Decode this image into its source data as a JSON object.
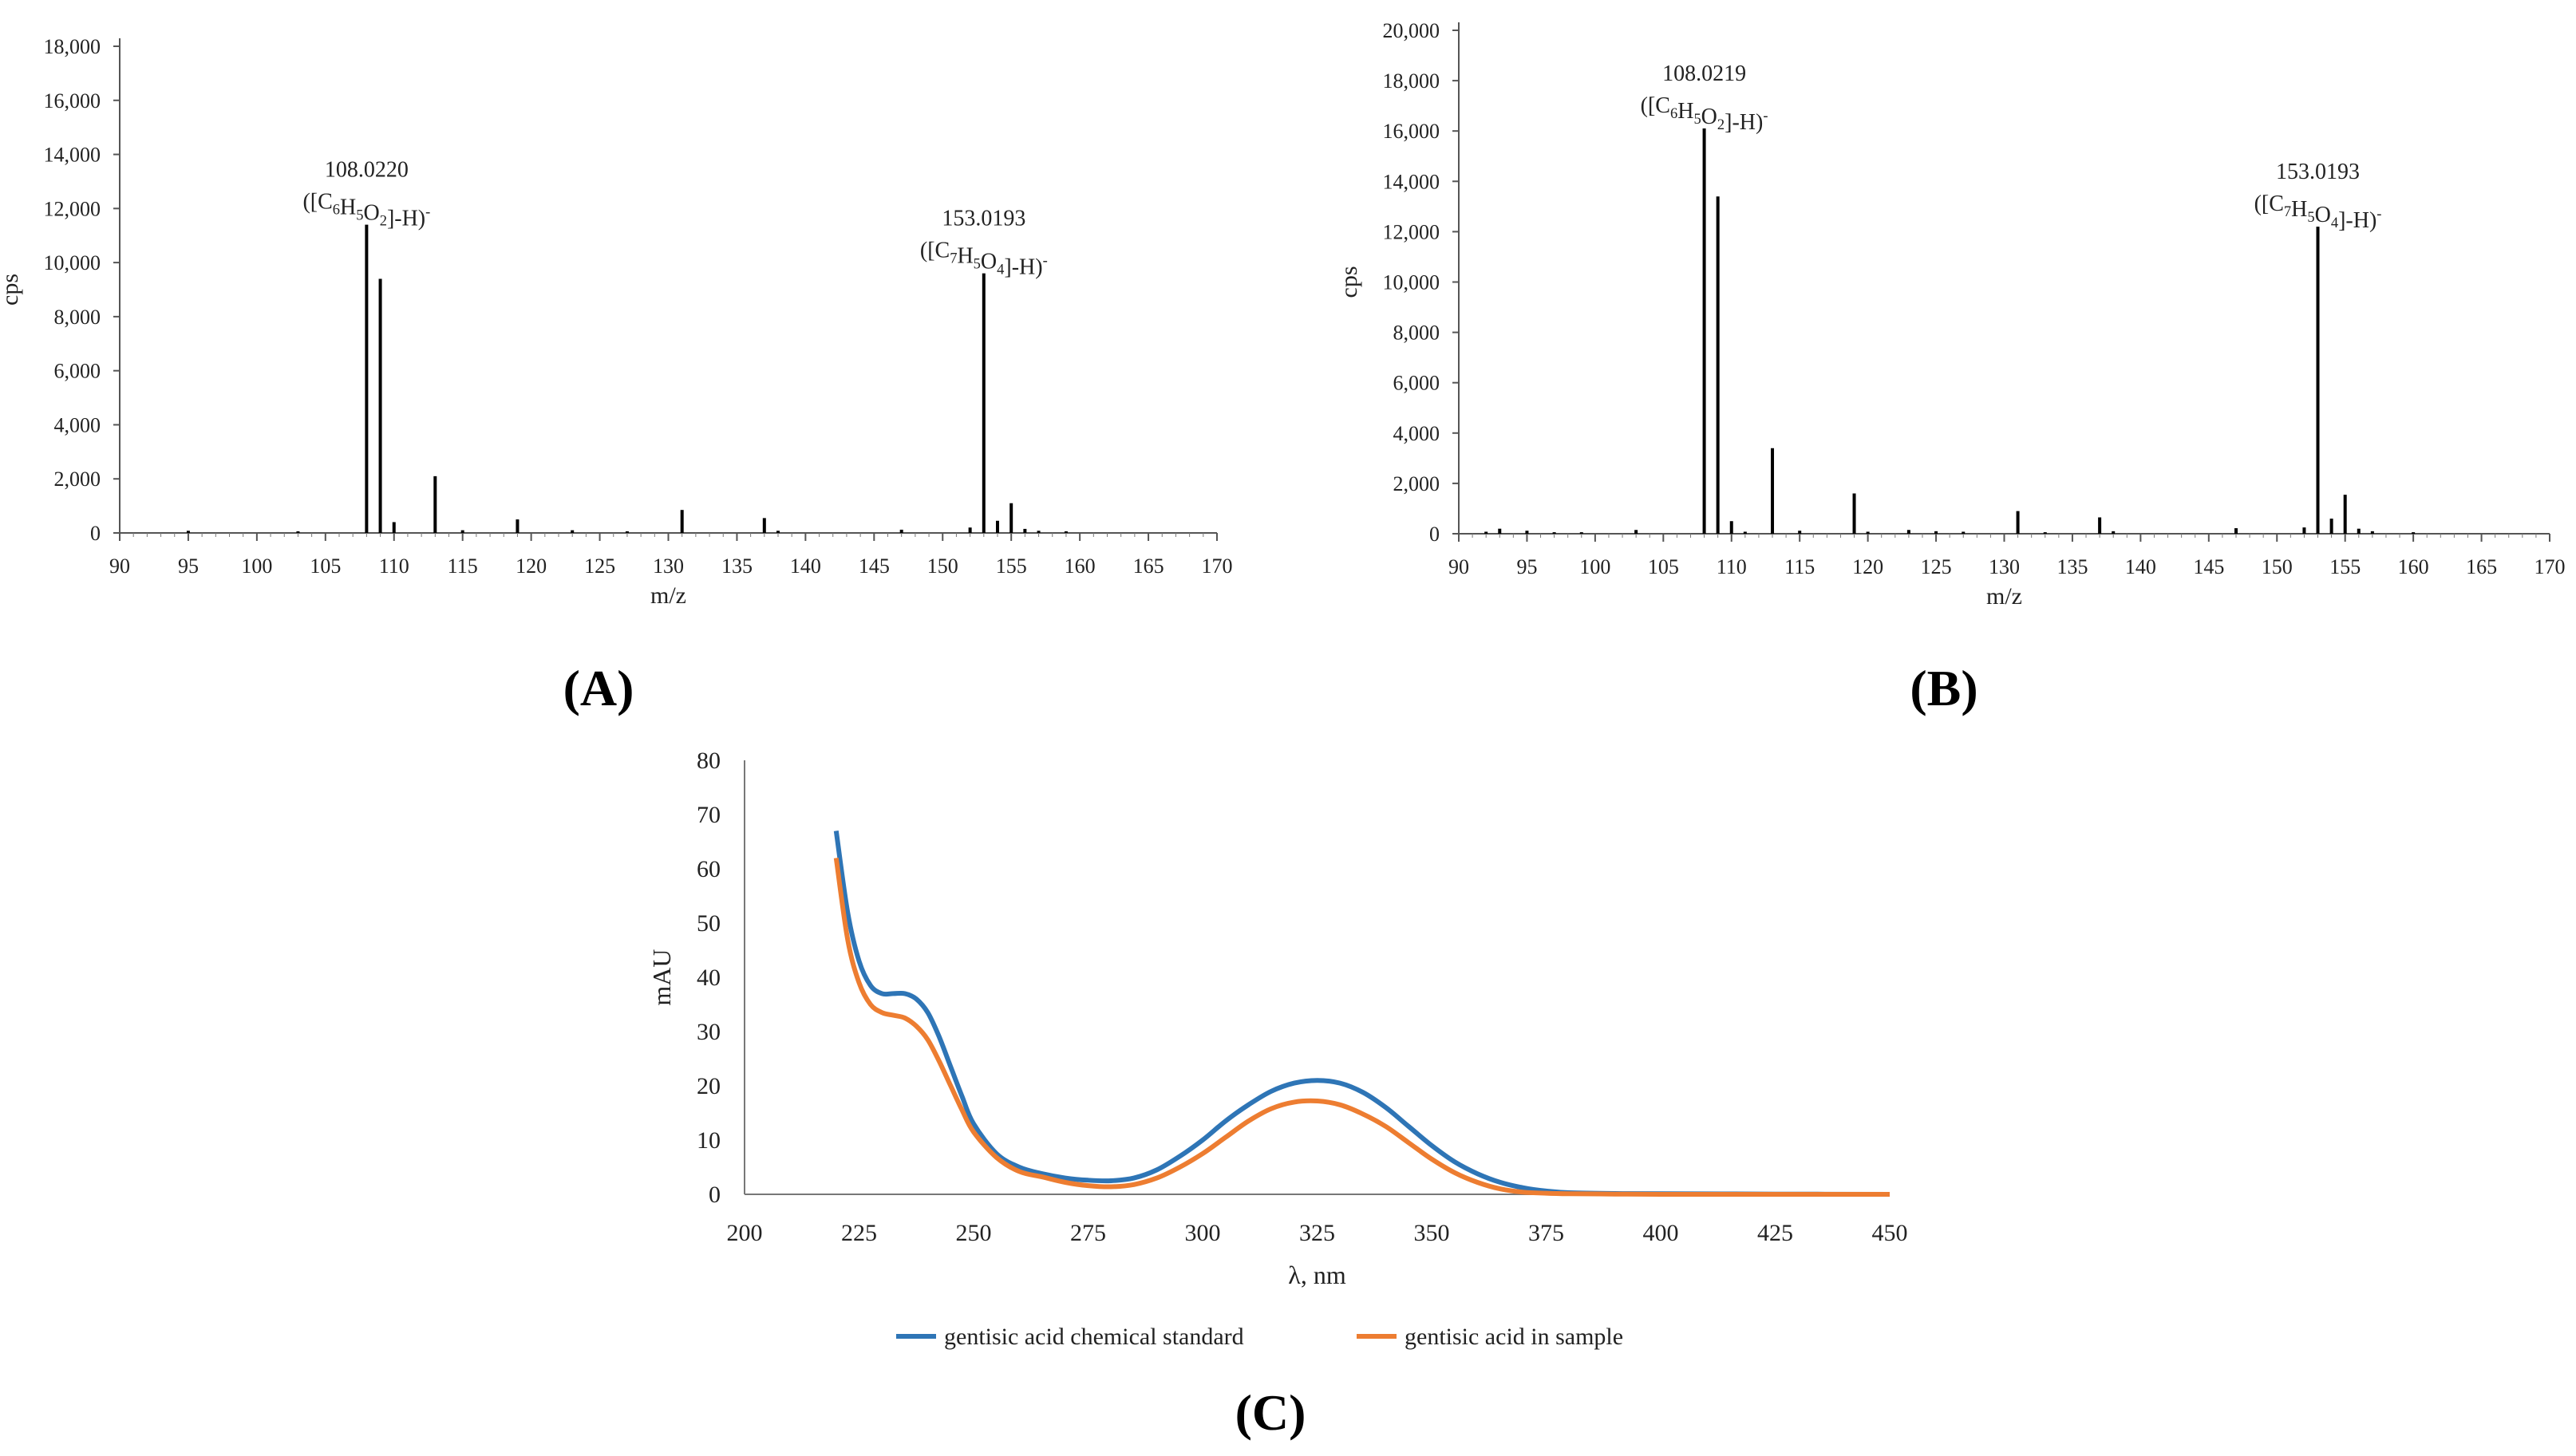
{
  "figure": {
    "panel_labels": [
      "(A)",
      "(B)",
      "(C)"
    ]
  },
  "chart_data": [
    {
      "id": "A",
      "type": "bar",
      "subtype": "mass-spectrum-stick",
      "xlabel": "m/z",
      "ylabel": "cps",
      "xlim": [
        90,
        170
      ],
      "ylim": [
        0,
        18000
      ],
      "xticks": [
        90,
        95,
        100,
        105,
        110,
        115,
        120,
        125,
        130,
        135,
        140,
        145,
        150,
        155,
        160,
        165,
        170
      ],
      "yticks": [
        0,
        2000,
        4000,
        6000,
        8000,
        10000,
        12000,
        14000,
        16000,
        18000
      ],
      "ytick_labels": [
        "0",
        "2,000",
        "4,000",
        "6,000",
        "8,000",
        "10,000",
        "12,000",
        "14,000",
        "16,000",
        "18,000"
      ],
      "peaks": [
        {
          "mz": 95.0,
          "i": 80
        },
        {
          "mz": 103.0,
          "i": 60
        },
        {
          "mz": 108.0,
          "i": 11400
        },
        {
          "mz": 109.0,
          "i": 9400
        },
        {
          "mz": 110.0,
          "i": 400
        },
        {
          "mz": 113.0,
          "i": 2100
        },
        {
          "mz": 115.0,
          "i": 100
        },
        {
          "mz": 119.0,
          "i": 500
        },
        {
          "mz": 123.0,
          "i": 100
        },
        {
          "mz": 127.0,
          "i": 60
        },
        {
          "mz": 131.0,
          "i": 850
        },
        {
          "mz": 137.0,
          "i": 550
        },
        {
          "mz": 138.0,
          "i": 80
        },
        {
          "mz": 147.0,
          "i": 120
        },
        {
          "mz": 152.0,
          "i": 200
        },
        {
          "mz": 153.0,
          "i": 9600
        },
        {
          "mz": 154.0,
          "i": 450
        },
        {
          "mz": 155.0,
          "i": 1100
        },
        {
          "mz": 156.0,
          "i": 150
        },
        {
          "mz": 157.0,
          "i": 80
        },
        {
          "mz": 159.0,
          "i": 60
        }
      ],
      "annotations": [
        {
          "mz": 108.0,
          "i": 11400,
          "mass": "108.0220",
          "formula": "([C6H5O2]-H)-"
        },
        {
          "mz": 153.0,
          "i": 9600,
          "mass": "153.0193",
          "formula": "([C7H5O4]-H)-"
        }
      ]
    },
    {
      "id": "B",
      "type": "bar",
      "subtype": "mass-spectrum-stick",
      "xlabel": "m/z",
      "ylabel": "cps",
      "xlim": [
        90,
        170
      ],
      "ylim": [
        0,
        20000
      ],
      "xticks": [
        90,
        95,
        100,
        105,
        110,
        115,
        120,
        125,
        130,
        135,
        140,
        145,
        150,
        155,
        160,
        165,
        170
      ],
      "yticks": [
        0,
        2000,
        4000,
        6000,
        8000,
        10000,
        12000,
        14000,
        16000,
        18000,
        20000
      ],
      "ytick_labels": [
        "0",
        "2,000",
        "4,000",
        "6,000",
        "8,000",
        "10,000",
        "12,000",
        "14,000",
        "16,000",
        "18,000",
        "20,000"
      ],
      "peaks": [
        {
          "mz": 92.0,
          "i": 80
        },
        {
          "mz": 93.0,
          "i": 200
        },
        {
          "mz": 95.0,
          "i": 120
        },
        {
          "mz": 97.0,
          "i": 60
        },
        {
          "mz": 99.0,
          "i": 60
        },
        {
          "mz": 103.0,
          "i": 150
        },
        {
          "mz": 108.0,
          "i": 16100
        },
        {
          "mz": 109.0,
          "i": 13400
        },
        {
          "mz": 110.0,
          "i": 500
        },
        {
          "mz": 111.0,
          "i": 80
        },
        {
          "mz": 113.0,
          "i": 3400
        },
        {
          "mz": 115.0,
          "i": 120
        },
        {
          "mz": 119.0,
          "i": 1600
        },
        {
          "mz": 120.0,
          "i": 80
        },
        {
          "mz": 123.0,
          "i": 150
        },
        {
          "mz": 125.0,
          "i": 100
        },
        {
          "mz": 127.0,
          "i": 80
        },
        {
          "mz": 131.0,
          "i": 900
        },
        {
          "mz": 133.0,
          "i": 60
        },
        {
          "mz": 137.0,
          "i": 650
        },
        {
          "mz": 138.0,
          "i": 100
        },
        {
          "mz": 147.0,
          "i": 220
        },
        {
          "mz": 152.0,
          "i": 250
        },
        {
          "mz": 153.0,
          "i": 12200
        },
        {
          "mz": 154.0,
          "i": 600
        },
        {
          "mz": 155.0,
          "i": 1550
        },
        {
          "mz": 156.0,
          "i": 200
        },
        {
          "mz": 157.0,
          "i": 100
        },
        {
          "mz": 160.0,
          "i": 60
        }
      ],
      "annotations": [
        {
          "mz": 108.0,
          "i": 16100,
          "mass": "108.0219",
          "formula": "([C6H5O2]-H)-"
        },
        {
          "mz": 153.0,
          "i": 12200,
          "mass": "153.0193",
          "formula": "([C7H5O4]-H)-"
        }
      ]
    },
    {
      "id": "C",
      "type": "line",
      "xlabel": "λ, nm",
      "ylabel": "mAU",
      "xlim": [
        200,
        450
      ],
      "ylim": [
        0,
        80
      ],
      "xticks": [
        200,
        225,
        250,
        275,
        300,
        325,
        350,
        375,
        400,
        425,
        450
      ],
      "yticks": [
        0,
        10,
        20,
        30,
        40,
        50,
        60,
        70,
        80
      ],
      "grid": false,
      "legend_position": "bottom",
      "x": [
        220,
        222.5,
        225,
        227.5,
        230,
        232.5,
        235,
        237.5,
        240,
        242.5,
        245,
        247.5,
        250,
        255,
        260,
        265,
        270,
        275,
        280,
        285,
        290,
        295,
        300,
        305,
        310,
        315,
        320,
        325,
        330,
        335,
        340,
        345,
        350,
        355,
        360,
        365,
        370,
        375,
        380,
        390,
        400,
        425,
        450
      ],
      "series": [
        {
          "name": "gentisic acid chemical standard",
          "color": "#2E75B6",
          "values": [
            67,
            52,
            43,
            38.5,
            37,
            37,
            37,
            36,
            33.5,
            29,
            23.5,
            18,
            13,
            7.5,
            5,
            3.8,
            3,
            2.6,
            2.5,
            3,
            4.5,
            7,
            10,
            13.5,
            16.5,
            19,
            20.5,
            21,
            20.5,
            18.8,
            16,
            12.5,
            9,
            6,
            3.8,
            2.2,
            1.2,
            0.6,
            0.3,
            0.15,
            0.1,
            0.05,
            0
          ]
        },
        {
          "name": "gentisic acid in sample",
          "color": "#ED7D31",
          "values": [
            62,
            47,
            39,
            35,
            33.5,
            33,
            32.5,
            31,
            28.5,
            24.5,
            20,
            15.5,
            11.5,
            6.8,
            4.2,
            3.2,
            2.2,
            1.6,
            1.4,
            1.8,
            3,
            5,
            7.5,
            10.5,
            13.5,
            15.8,
            17,
            17.2,
            16.5,
            14.8,
            12.5,
            9.5,
            6.5,
            4,
            2.2,
            1,
            0.4,
            0.2,
            0.1,
            0.05,
            0,
            0,
            0
          ]
        }
      ]
    }
  ]
}
